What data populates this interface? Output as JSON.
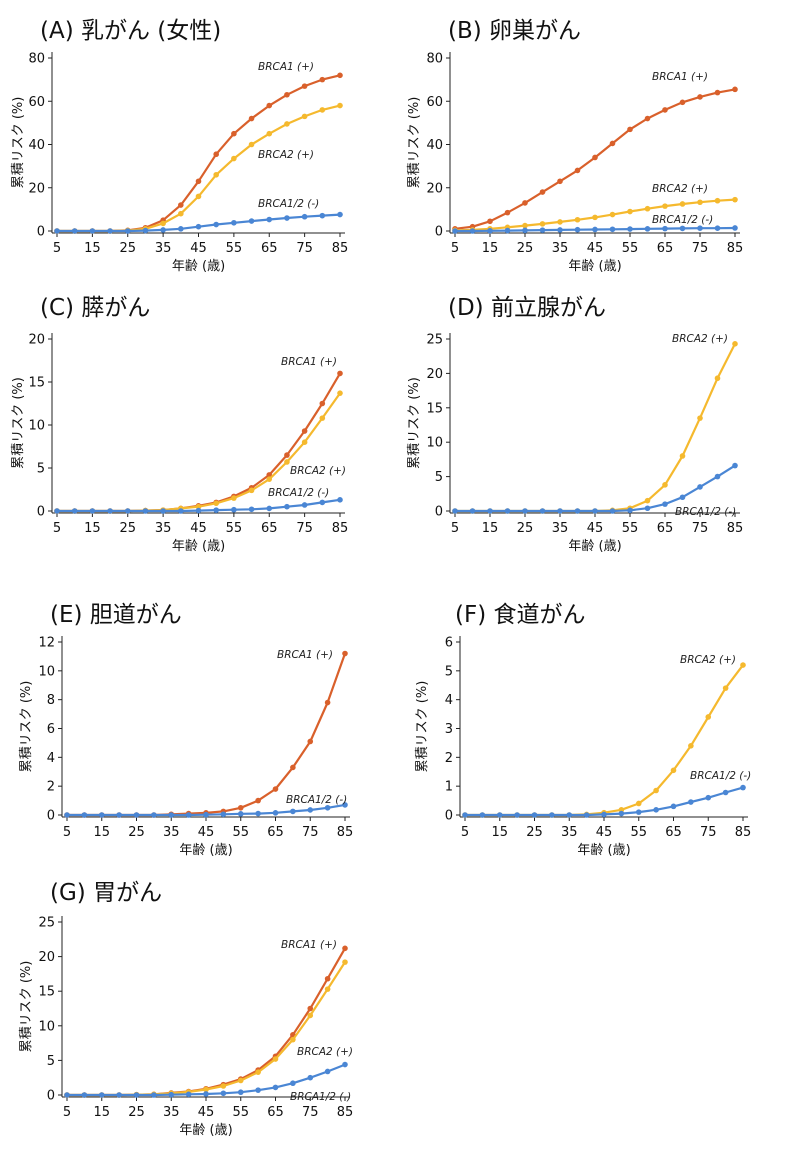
{
  "colors": {
    "BRCA1 (+)": "#d9602b",
    "BRCA2 (+)": "#f5b92e",
    "BRCA1/2 (-)": "#4a86d4"
  },
  "chart_data": [
    {
      "type": "line",
      "title": "(A) 乳がん (女性)",
      "xlabel": "年齢 (歳)",
      "ylabel": "累積リスク (%)",
      "ylim": [
        0,
        80
      ],
      "yticks": [
        "0",
        "20",
        "40",
        "60",
        "80"
      ],
      "xticks": [
        "5",
        "15",
        "25",
        "35",
        "45",
        "55",
        "65",
        "75",
        "85"
      ],
      "x": [
        5,
        10,
        15,
        20,
        25,
        30,
        35,
        40,
        45,
        50,
        55,
        60,
        65,
        70,
        75,
        80,
        85
      ],
      "series": [
        {
          "name": "BRCA1 (+)",
          "values": [
            0,
            0,
            0,
            0,
            0.3,
            1.5,
            5,
            12,
            23,
            35.5,
            45,
            52,
            58,
            63,
            67,
            70,
            72
          ]
        },
        {
          "name": "BRCA2 (+)",
          "values": [
            0,
            0,
            0,
            0,
            0.2,
            1,
            3.5,
            8,
            16,
            26,
            33.5,
            40,
            45,
            49.5,
            53,
            56,
            58
          ]
        },
        {
          "name": "BRCA1/2 (-)",
          "values": [
            0,
            0,
            0,
            0,
            0,
            0.2,
            0.5,
            1,
            2,
            3,
            3.8,
            4.6,
            5.3,
            6,
            6.6,
            7.1,
            7.6
          ]
        }
      ]
    },
    {
      "type": "line",
      "title": "(B) 卵巣がん",
      "xlabel": "年齢 (歳)",
      "ylabel": "累積リスク (%)",
      "ylim": [
        0,
        80
      ],
      "yticks": [
        "0",
        "20",
        "40",
        "60",
        "80"
      ],
      "xticks": [
        "5",
        "15",
        "25",
        "35",
        "45",
        "55",
        "65",
        "75",
        "85"
      ],
      "x": [
        5,
        10,
        15,
        20,
        25,
        30,
        35,
        40,
        45,
        50,
        55,
        60,
        65,
        70,
        75,
        80,
        85
      ],
      "series": [
        {
          "name": "BRCA1 (+)",
          "values": [
            1,
            2,
            4.5,
            8.5,
            13,
            18,
            23,
            28,
            34,
            40.5,
            47,
            52,
            56,
            59.5,
            62,
            64,
            65.5
          ]
        },
        {
          "name": "BRCA2 (+)",
          "values": [
            0.3,
            0.5,
            1,
            1.7,
            2.5,
            3.3,
            4.2,
            5.2,
            6.3,
            7.6,
            9,
            10.3,
            11.5,
            12.5,
            13.3,
            14,
            14.5
          ]
        },
        {
          "name": "BRCA1/2 (-)",
          "values": [
            0,
            0,
            0.1,
            0.2,
            0.3,
            0.4,
            0.5,
            0.6,
            0.7,
            0.8,
            0.9,
            1,
            1.1,
            1.2,
            1.3,
            1.3,
            1.4
          ]
        }
      ]
    },
    {
      "type": "line",
      "title": "(C) 膵がん",
      "xlabel": "年齢 (歳)",
      "ylabel": "累積リスク (%)",
      "ylim": [
        0,
        20
      ],
      "yticks": [
        "0",
        "5",
        "10",
        "15",
        "20"
      ],
      "xticks": [
        "5",
        "15",
        "25",
        "35",
        "45",
        "55",
        "65",
        "75",
        "85"
      ],
      "x": [
        5,
        10,
        15,
        20,
        25,
        30,
        35,
        40,
        45,
        50,
        55,
        60,
        65,
        70,
        75,
        80,
        85
      ],
      "series": [
        {
          "name": "BRCA1 (+)",
          "values": [
            0,
            0,
            0,
            0,
            0,
            0.05,
            0.1,
            0.3,
            0.6,
            1,
            1.7,
            2.7,
            4.2,
            6.5,
            9.3,
            12.5,
            16
          ]
        },
        {
          "name": "BRCA2 (+)",
          "values": [
            0,
            0,
            0,
            0,
            0,
            0.05,
            0.1,
            0.3,
            0.5,
            0.9,
            1.5,
            2.4,
            3.7,
            5.7,
            8,
            10.8,
            13.7
          ]
        },
        {
          "name": "BRCA1/2 (-)",
          "values": [
            0,
            0,
            0,
            0,
            0,
            0,
            0,
            0,
            0.05,
            0.1,
            0.15,
            0.2,
            0.3,
            0.5,
            0.7,
            1,
            1.3
          ]
        }
      ]
    },
    {
      "type": "line",
      "title": "(D) 前立腺がん",
      "xlabel": "年齢 (歳)",
      "ylabel": "累積リスク (%)",
      "ylim": [
        0,
        25
      ],
      "yticks": [
        "0",
        "5",
        "10",
        "15",
        "20",
        "25"
      ],
      "xticks": [
        "5",
        "15",
        "25",
        "35",
        "45",
        "55",
        "65",
        "75",
        "85"
      ],
      "x": [
        5,
        10,
        15,
        20,
        25,
        30,
        35,
        40,
        45,
        50,
        55,
        60,
        65,
        70,
        75,
        80,
        85
      ],
      "series": [
        {
          "name": "BRCA2 (+)",
          "values": [
            0,
            0,
            0,
            0,
            0,
            0,
            0,
            0,
            0,
            0.1,
            0.4,
            1.5,
            3.8,
            8,
            13.5,
            19.3,
            24.3
          ]
        },
        {
          "name": "BRCA1/2 (-)",
          "values": [
            0,
            0,
            0,
            0,
            0,
            0,
            0,
            0,
            0,
            0,
            0.1,
            0.4,
            1,
            2,
            3.5,
            5,
            6.6
          ]
        }
      ]
    },
    {
      "type": "line",
      "title": "(E) 胆道がん",
      "xlabel": "年齢 (歳)",
      "ylabel": "累積リスク (%)",
      "ylim": [
        0,
        12
      ],
      "yticks": [
        "0",
        "2",
        "4",
        "6",
        "8",
        "10",
        "12"
      ],
      "xticks": [
        "5",
        "15",
        "25",
        "35",
        "45",
        "55",
        "65",
        "75",
        "85"
      ],
      "x": [
        5,
        10,
        15,
        20,
        25,
        30,
        35,
        40,
        45,
        50,
        55,
        60,
        65,
        70,
        75,
        80,
        85
      ],
      "series": [
        {
          "name": "BRCA1 (+)",
          "values": [
            0,
            0,
            0,
            0,
            0,
            0,
            0.05,
            0.1,
            0.15,
            0.25,
            0.5,
            1,
            1.8,
            3.3,
            5.1,
            7.8,
            11.2
          ]
        },
        {
          "name": "BRCA1/2 (-)",
          "values": [
            0,
            0,
            0,
            0,
            0,
            0,
            0,
            0,
            0.02,
            0.05,
            0.08,
            0.1,
            0.15,
            0.25,
            0.35,
            0.5,
            0.7
          ]
        }
      ]
    },
    {
      "type": "line",
      "title": "(F) 食道がん",
      "xlabel": "年齢 (歳)",
      "ylabel": "累積リスク (%)",
      "ylim": [
        0,
        6
      ],
      "yticks": [
        "0",
        "1",
        "2",
        "3",
        "4",
        "5",
        "6"
      ],
      "xticks": [
        "5",
        "15",
        "25",
        "35",
        "45",
        "55",
        "65",
        "75",
        "85"
      ],
      "x": [
        5,
        10,
        15,
        20,
        25,
        30,
        35,
        40,
        45,
        50,
        55,
        60,
        65,
        70,
        75,
        80,
        85
      ],
      "series": [
        {
          "name": "BRCA2 (+)",
          "values": [
            0,
            0,
            0,
            0,
            0,
            0,
            0,
            0.02,
            0.08,
            0.18,
            0.4,
            0.85,
            1.55,
            2.4,
            3.4,
            4.4,
            5.2
          ]
        },
        {
          "name": "BRCA1/2 (-)",
          "values": [
            0,
            0,
            0,
            0,
            0,
            0,
            0,
            0,
            0.02,
            0.05,
            0.1,
            0.18,
            0.3,
            0.45,
            0.6,
            0.78,
            0.95
          ]
        }
      ]
    },
    {
      "type": "line",
      "title": "(G) 胃がん",
      "xlabel": "年齢 (歳)",
      "ylabel": "累積リスク (%)",
      "ylim": [
        0,
        25
      ],
      "yticks": [
        "0",
        "5",
        "10",
        "15",
        "20",
        "25"
      ],
      "xticks": [
        "5",
        "15",
        "25",
        "35",
        "45",
        "55",
        "65",
        "75",
        "85"
      ],
      "x": [
        5,
        10,
        15,
        20,
        25,
        30,
        35,
        40,
        45,
        50,
        55,
        60,
        65,
        70,
        75,
        80,
        85
      ],
      "series": [
        {
          "name": "BRCA1 (+)",
          "values": [
            0,
            0,
            0,
            0,
            0.05,
            0.1,
            0.3,
            0.5,
            0.9,
            1.5,
            2.3,
            3.6,
            5.6,
            8.7,
            12.5,
            16.8,
            21.2
          ]
        },
        {
          "name": "BRCA2 (+)",
          "values": [
            0,
            0,
            0,
            0,
            0.05,
            0.1,
            0.25,
            0.45,
            0.8,
            1.3,
            2.1,
            3.3,
            5.2,
            8,
            11.5,
            15.3,
            19.2
          ]
        },
        {
          "name": "BRCA1/2 (-)",
          "values": [
            0,
            0,
            0,
            0,
            0,
            0,
            0.05,
            0.1,
            0.15,
            0.25,
            0.4,
            0.7,
            1.1,
            1.7,
            2.5,
            3.4,
            4.4
          ]
        }
      ]
    }
  ]
}
